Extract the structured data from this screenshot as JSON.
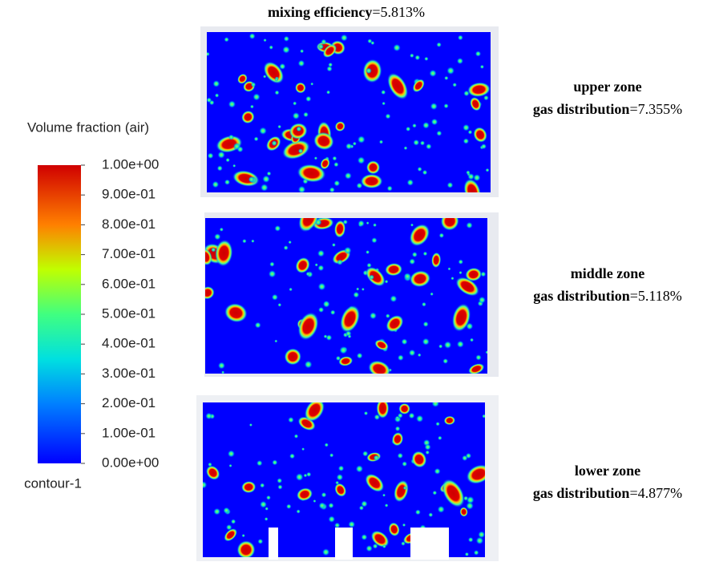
{
  "title": {
    "label": "mixing efficiency",
    "value": "=5.813%"
  },
  "colorbar": {
    "title": "Volume fraction (air)",
    "ticks": [
      "1.00e+00",
      "9.00e-01",
      "8.00e-01",
      "7.00e-01",
      "6.00e-01",
      "5.00e-01",
      "4.00e-01",
      "3.00e-01",
      "2.00e-01",
      "1.00e-01",
      "0.00e+00"
    ],
    "name": "contour-1"
  },
  "zones": [
    {
      "name": "upper zone",
      "label": "gas distribution",
      "value": "=7.355%"
    },
    {
      "name": "middle zone",
      "label": "gas distribution",
      "value": "=5.118%"
    },
    {
      "name": "lower zone",
      "label": "gas distribution",
      "value": "=4.877%"
    }
  ]
}
